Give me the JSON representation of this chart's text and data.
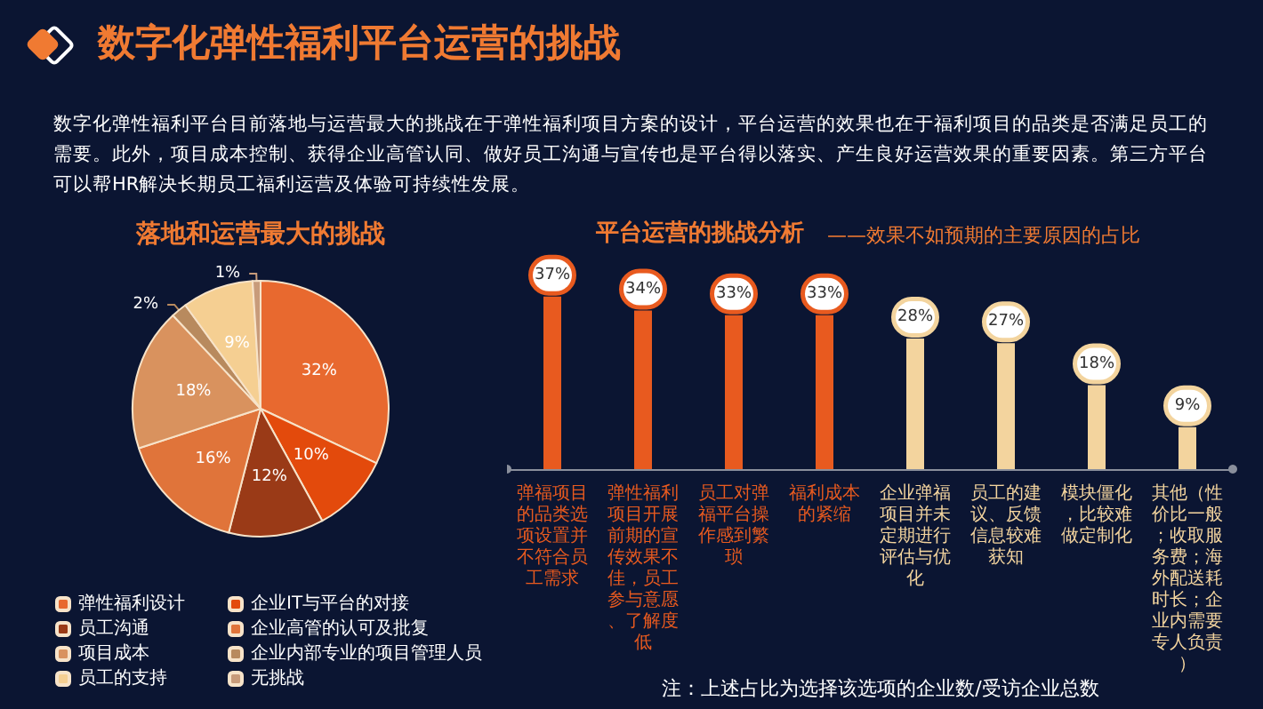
{
  "chart_data": [
    {
      "type": "other",
      "title": "数字化弹性福利平台运营的挑战",
      "annotations": [
        "数字化弹性福利平台目前落地与运营最大的挑战在于弹性福利项目方案的设计，平台运营的效果也在于福利项目的品类是否满足员工的需要。此外，项目成本控制、获得企业高管认同、做好员工沟通与宣传也是平台得以落实、产生良好运营效果的重要因素。第三方平台可以帮HR解决长期员工福利运营及体验可持续性发展。"
      ]
    },
    {
      "type": "pie",
      "title": "落地和运营最大的挑战",
      "categories": [
        "弹性福利设计",
        "企业IT与平台的对接",
        "员工沟通",
        "企业高管的认可及批复",
        "项目成本",
        "企业内部专业的项目管理人员",
        "员工的支持",
        "无挑战"
      ],
      "values": [
        32,
        10,
        12,
        16,
        18,
        2,
        9,
        1
      ],
      "value_labels": [
        "32%",
        "10%",
        "12%",
        "16%",
        "18%",
        "2%",
        "9%",
        "1%"
      ],
      "colors": [
        "#e8692f",
        "#e34a0c",
        "#9a3a17",
        "#e0743a",
        "#d9925e",
        "#b88a5e",
        "#f5cf92",
        "#c89b7a"
      ],
      "legend": "bottom"
    },
    {
      "type": "bar",
      "title": "平台运营的挑战分析",
      "subtitle": "——效果不如预期的主要原因的占比",
      "categories": [
        "弹福项目的品类选项设置并不符合员工需求",
        "弹性福利项目开展前期的宣传效果不佳，员工参与意愿、了解度低",
        "员工对弹福平台操作感到繁琐",
        "福利成本的紧缩",
        "企业弹福项目并未定期进行评估与优化",
        "员工的建议、反馈信息较难获知",
        "模块僵化，比较难做定制化",
        "其他（性价比一般；收取服务费；海外配送耗时长；企业内需要专人负责）"
      ],
      "values": [
        37,
        34,
        33,
        33,
        28,
        27,
        18,
        9
      ],
      "value_labels": [
        "37%",
        "34%",
        "33%",
        "33%",
        "28%",
        "27%",
        "18%",
        "9%"
      ],
      "colors": [
        "#e85a1f",
        "#e85a1f",
        "#e85a1f",
        "#e85a1f",
        "#f3d49e",
        "#f3d49e",
        "#f3d49e",
        "#f3d49e"
      ],
      "annotations": [
        "注：上述占比为选择该选项的企业数/受访企业总数"
      ]
    }
  ]
}
